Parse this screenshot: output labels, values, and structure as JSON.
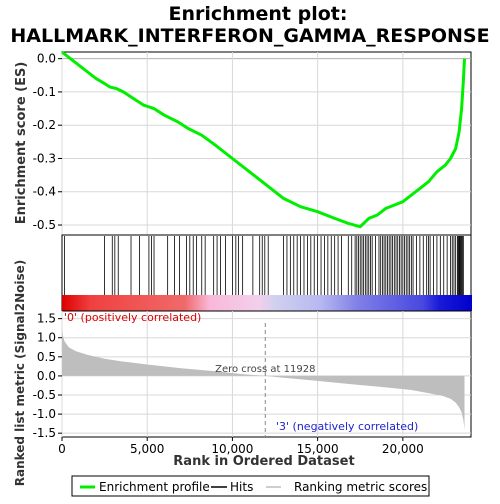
{
  "chart_data": {
    "type": "line",
    "title_line1": "Enrichment plot:",
    "title_line2": "HALLMARK_INTERFERON_GAMMA_RESPONSE",
    "es_ylabel": "Enrichment score (ES)",
    "metric_ylabel": "Ranked list metric (Signal2Noise)",
    "xlabel": "Rank in Ordered Dataset",
    "xlim": [
      0,
      24000
    ],
    "es_ylim": [
      -0.53,
      0.02
    ],
    "metric_ylim": [
      -1.6,
      1.7
    ],
    "x_ticks": [
      0,
      5000,
      10000,
      15000,
      20000
    ],
    "x_tick_labels": [
      "0",
      "5,000",
      "10,000",
      "15,000",
      "20,000"
    ],
    "es_ticks": [
      0.0,
      -0.1,
      -0.2,
      -0.3,
      -0.4,
      -0.5
    ],
    "es_tick_labels": [
      "0.0",
      "-0.1",
      "-0.2",
      "-0.3",
      "-0.4",
      "-0.5"
    ],
    "metric_ticks": [
      1.5,
      1.0,
      0.5,
      0.0,
      -0.5,
      -1.0,
      -1.5
    ],
    "metric_tick_labels": [
      "1.5",
      "1.0",
      "0.5",
      "0.0",
      "-0.5",
      "-1.0",
      "-1.5"
    ],
    "series": [
      {
        "name": "Enrichment profile",
        "color": "#00ee00",
        "x": [
          0,
          500,
          1000,
          1500,
          2000,
          2500,
          2800,
          3200,
          3600,
          4200,
          4800,
          5400,
          6000,
          6800,
          7400,
          8200,
          9000,
          10000,
          11000,
          12000,
          13000,
          14000,
          15000,
          16000,
          16800,
          17500,
          18000,
          18500,
          19000,
          19500,
          20000,
          20500,
          21000,
          21500,
          22000,
          22500,
          22800,
          23100,
          23300,
          23450,
          23550,
          23620
        ],
        "y": [
          0.02,
          0.0,
          -0.02,
          -0.04,
          -0.06,
          -0.075,
          -0.085,
          -0.09,
          -0.1,
          -0.12,
          -0.14,
          -0.15,
          -0.17,
          -0.19,
          -0.21,
          -0.23,
          -0.26,
          -0.3,
          -0.34,
          -0.38,
          -0.42,
          -0.445,
          -0.46,
          -0.48,
          -0.495,
          -0.505,
          -0.48,
          -0.47,
          -0.45,
          -0.44,
          -0.43,
          -0.41,
          -0.39,
          -0.37,
          -0.34,
          -0.32,
          -0.3,
          -0.27,
          -0.22,
          -0.15,
          -0.07,
          0.0
        ]
      },
      {
        "name": "Hits",
        "color": "#000000",
        "hits": [
          150,
          2500,
          2950,
          3100,
          3300,
          4050,
          4550,
          5100,
          5250,
          5400,
          6200,
          6600,
          6900,
          7300,
          7500,
          7700,
          7900,
          8200,
          8400,
          8900,
          9100,
          9300,
          9600,
          10000,
          10200,
          10350,
          10600,
          11200,
          11600,
          11750,
          11900,
          12100,
          13000,
          13200,
          13400,
          13600,
          13800,
          14000,
          14200,
          14400,
          14600,
          14800,
          15000,
          15200,
          15400,
          15600,
          15800,
          16000,
          16200,
          16400,
          16800,
          17000,
          17200,
          17300,
          17400,
          17500,
          17600,
          17700,
          17800,
          17900,
          18000,
          18100,
          18200,
          18400,
          18600,
          18700,
          18800,
          18900,
          19000,
          19100,
          19200,
          19300,
          19400,
          19500,
          19600,
          19700,
          19800,
          19900,
          20000,
          20100,
          20200,
          20300,
          20400,
          20500,
          20600,
          20800,
          21000,
          21200,
          21400,
          21500,
          21600,
          21800,
          22000,
          22200,
          22400,
          22600,
          22800,
          22900,
          23000,
          23100,
          23200,
          23250,
          23300,
          23350,
          23400,
          23450,
          23500,
          23550
        ]
      },
      {
        "name": "Ranking metric scores",
        "color": "#bebebe",
        "x": [
          0,
          50,
          150,
          400,
          800,
          1500,
          2500,
          3500,
          5000,
          7000,
          9000,
          10500,
          11928,
          13000,
          15000,
          17000,
          19000,
          20500,
          21500,
          22300,
          22800,
          23100,
          23300,
          23450,
          23550,
          23620
        ],
        "y": [
          1.2,
          1.05,
          0.9,
          0.75,
          0.65,
          0.55,
          0.45,
          0.38,
          0.3,
          0.2,
          0.12,
          0.05,
          0.0,
          -0.05,
          -0.13,
          -0.22,
          -0.3,
          -0.37,
          -0.45,
          -0.52,
          -0.6,
          -0.7,
          -0.82,
          -0.95,
          -1.15,
          -1.4
        ]
      }
    ],
    "zero_cross_label": "Zero cross at 11928",
    "zero_cross_x": 11928,
    "pos_label": "'0' (positively correlated)",
    "neg_label": "'3' (negatively correlated)",
    "colors": {
      "es": "#00ee00",
      "pos_label": "#dd0000",
      "neg_label": "#2222cc",
      "zero_label": "#444444",
      "metric": "#bebebe",
      "axis": "#000000",
      "grid": "#d8d8d8"
    },
    "grid": true,
    "legend_position": "bottom"
  }
}
